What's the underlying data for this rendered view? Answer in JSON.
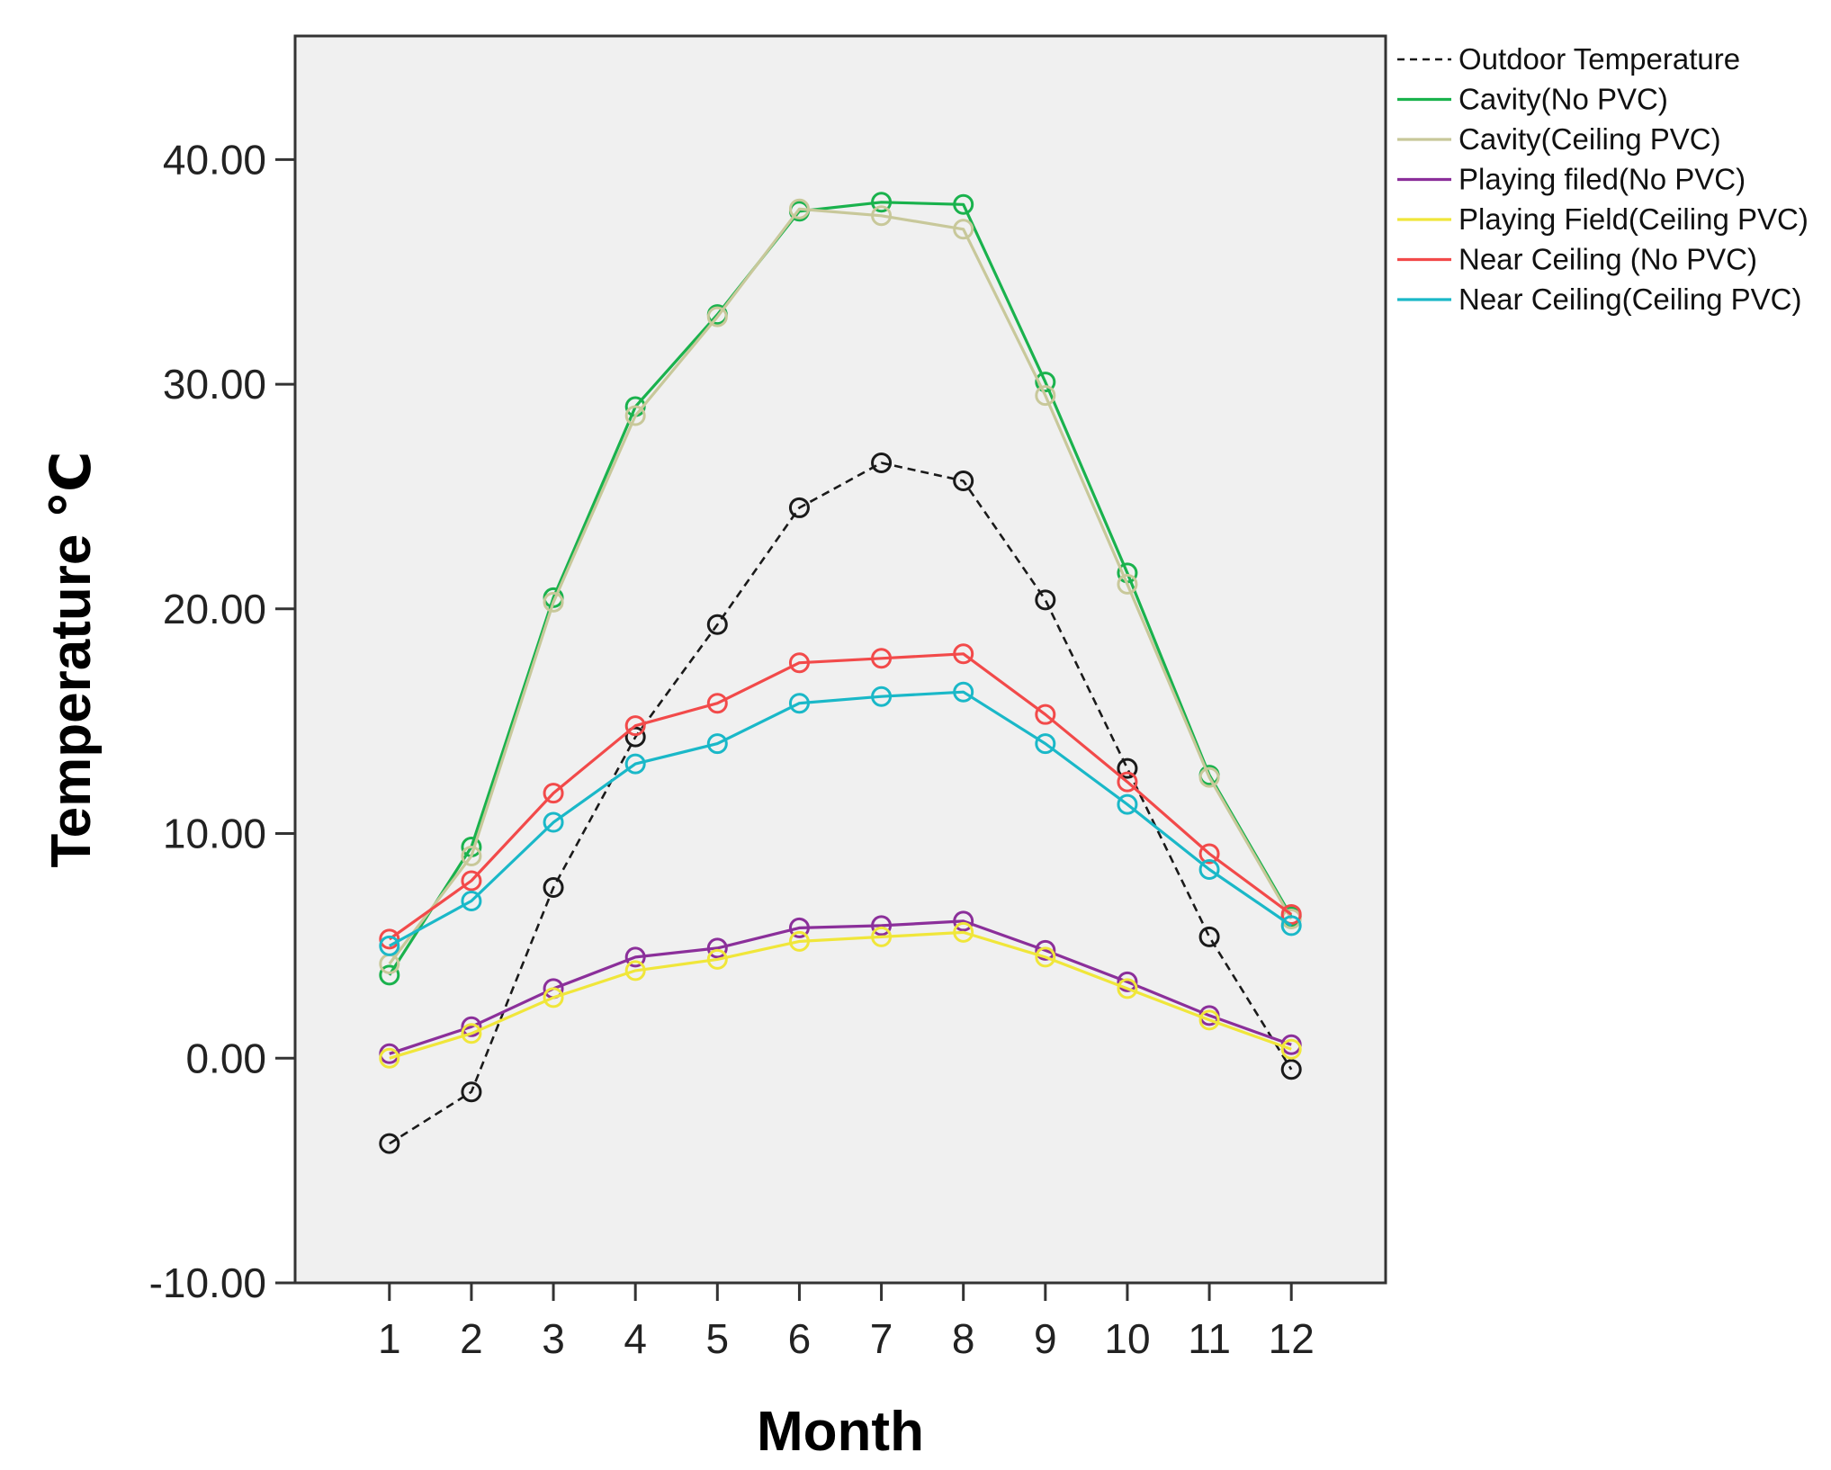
{
  "chart_data": {
    "type": "line",
    "title": "",
    "xlabel": "Month",
    "ylabel": "Temperature ℃",
    "x": [
      1,
      2,
      3,
      4,
      5,
      6,
      7,
      8,
      9,
      10,
      11,
      12
    ],
    "x_tick_labels": [
      "1",
      "2",
      "3",
      "4",
      "5",
      "6",
      "7",
      "8",
      "9",
      "10",
      "11",
      "12"
    ],
    "xlim": [
      -0.15,
      13.15
    ],
    "ylim": [
      -10,
      45.5
    ],
    "y_ticks": [
      -10,
      0,
      10,
      20,
      30,
      40
    ],
    "y_tick_labels": [
      "-10.00",
      "0.00",
      "10.00",
      "20.00",
      "30.00",
      "40.00"
    ],
    "grid": false,
    "legend_position": "outside-right-top",
    "plot_background": "#f0f0f0",
    "series": [
      {
        "name": "Outdoor Temperature",
        "color": "#1a1a1a",
        "dashed": true,
        "values": [
          -3.8,
          -1.5,
          7.6,
          14.3,
          19.3,
          24.5,
          26.5,
          25.7,
          20.4,
          12.9,
          5.4,
          -0.5
        ]
      },
      {
        "name": "Cavity(No PVC)",
        "color": "#1ab24d",
        "dashed": false,
        "values": [
          3.7,
          9.4,
          20.5,
          29.0,
          33.1,
          37.7,
          38.1,
          38.0,
          30.1,
          21.6,
          12.6,
          6.3
        ]
      },
      {
        "name": "Cavity(Ceiling PVC)",
        "color": "#c8c89a",
        "dashed": false,
        "values": [
          4.2,
          9.0,
          20.3,
          28.6,
          33.0,
          37.8,
          37.5,
          36.9,
          29.5,
          21.1,
          12.5,
          6.2
        ]
      },
      {
        "name": "Playing filed(No PVC)",
        "color": "#8b2f9a",
        "dashed": false,
        "values": [
          0.2,
          1.4,
          3.1,
          4.5,
          4.9,
          5.8,
          5.9,
          6.1,
          4.8,
          3.4,
          1.9,
          0.6
        ]
      },
      {
        "name": "Playing Field(Ceiling PVC)",
        "color": "#f0e63a",
        "dashed": false,
        "values": [
          0.0,
          1.1,
          2.7,
          3.9,
          4.4,
          5.2,
          5.4,
          5.6,
          4.5,
          3.1,
          1.7,
          0.4
        ]
      },
      {
        "name": "Near Ceiling (No PVC)",
        "color": "#f24a4a",
        "dashed": false,
        "values": [
          5.3,
          7.9,
          11.8,
          14.8,
          15.8,
          17.6,
          17.8,
          18.0,
          15.3,
          12.3,
          9.1,
          6.4
        ]
      },
      {
        "name": "Near Ceiling(Ceiling PVC)",
        "color": "#1ab8c8",
        "dashed": false,
        "values": [
          5.0,
          7.0,
          10.5,
          13.1,
          14.0,
          15.8,
          16.1,
          16.3,
          14.0,
          11.3,
          8.4,
          5.9
        ]
      }
    ]
  }
}
